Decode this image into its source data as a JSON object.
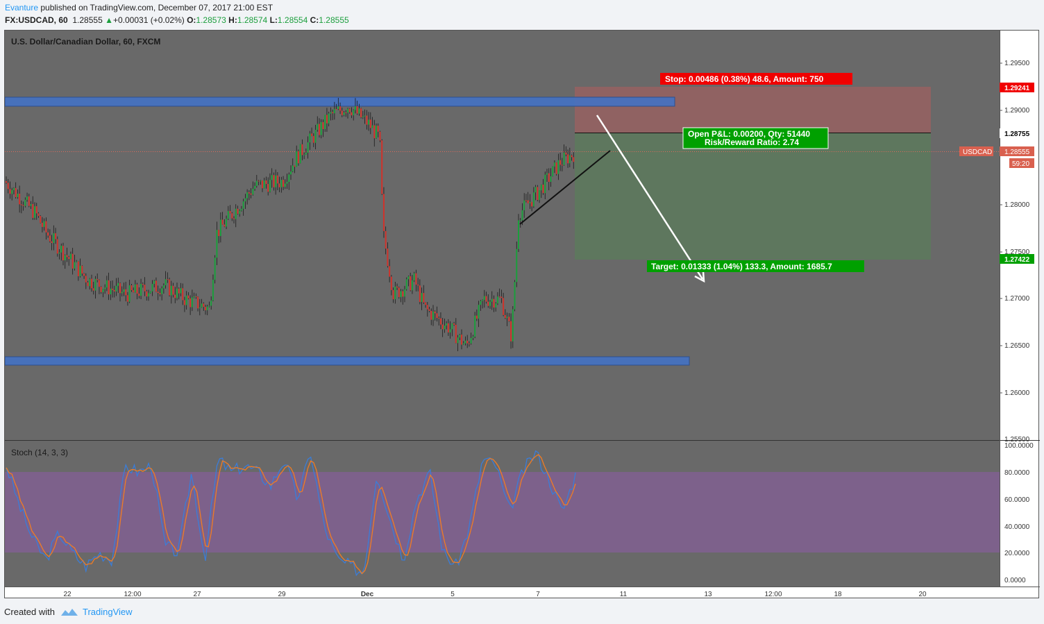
{
  "header": {
    "author": "Evanture",
    "published": " published on TradingView.com, December 07, 2017 21:00 EST",
    "symbol_line": "FX:USDCAD, 60",
    "last": "1.28555",
    "change": "+0.00031 (+0.02%)",
    "o_label": "O:",
    "o": "1.28573",
    "h_label": "H:",
    "h": "1.28574",
    "l_label": "L:",
    "l": "1.28554",
    "c_label": "C:",
    "c": "1.28555"
  },
  "chart": {
    "title": "U.S. Dollar/Canadian Dollar, 60, FXCM",
    "price_ticks": [
      "1.29500",
      "1.29000",
      "1.28500",
      "1.28000",
      "1.27500",
      "1.27000",
      "1.26500",
      "1.26000",
      "1.25500"
    ],
    "stoch_label": "Stoch (14, 3, 3)",
    "stoch_ticks": [
      "100.0000",
      "80.0000",
      "60.0000",
      "40.0000",
      "20.0000",
      "0.0000"
    ],
    "time_ticks": [
      "22",
      "12:00",
      "27",
      "29",
      "Dec",
      "5",
      "7",
      "11",
      "13",
      "12:00",
      "18",
      "20"
    ],
    "stop_label": "Stop: 0.00486 (0.38%) 48.6, Amount: 750",
    "stop_price": "1.29241",
    "entry_price": "1.28755",
    "pnl_line1": "Open P&L: 0.00200, Qty: 51440",
    "pnl_line2": "Risk/Reward Ratio: 2.74",
    "target_label": "Target: 0.01333 (1.04%) 133.3, Amount: 1685.7",
    "target_price": "1.27422",
    "symbol_tag": "USDCAD",
    "current_price": "1.28555",
    "countdown": "59:20",
    "colors": {
      "up": "#1b9e3c",
      "down": "#d0332b",
      "zone": "#4472c4",
      "stop": "#f00000",
      "target": "#00a000",
      "stoch_k": "#3b7dd8",
      "stoch_d": "#f07c24"
    }
  },
  "chart_data": {
    "type": "candlestick",
    "title": "U.S. Dollar/Canadian Dollar, 60, FXCM",
    "symbol": "USDCAD",
    "timeframe": "60",
    "ylim": [
      1.255,
      1.298
    ],
    "close_path": [
      [
        "Nov 21",
        1.2825
      ],
      [
        "Nov 22",
        1.279
      ],
      [
        "Nov 22",
        1.277
      ],
      [
        "Nov 22 12:00",
        1.272
      ],
      [
        "Nov 23",
        1.2705
      ],
      [
        "Nov 24",
        1.2715
      ],
      [
        "Nov 24",
        1.27
      ],
      [
        "Nov 27",
        1.269
      ],
      [
        "Nov 27",
        1.277
      ],
      [
        "Nov 28",
        1.282
      ],
      [
        "Nov 28",
        1.2825
      ],
      [
        "Nov 29",
        1.285
      ],
      [
        "Nov 30",
        1.2895
      ],
      [
        "Nov 30",
        1.2905
      ],
      [
        "Nov 30",
        1.2885
      ],
      [
        "Dec 1",
        1.287
      ],
      [
        "Dec 1",
        1.277
      ],
      [
        "Dec 1",
        1.2705
      ],
      [
        "Dec 4",
        1.272
      ],
      [
        "Dec 4",
        1.269
      ],
      [
        "Dec 4",
        1.267
      ],
      [
        "Dec 5",
        1.265
      ],
      [
        "Dec 5",
        1.27
      ],
      [
        "Dec 6",
        1.27
      ],
      [
        "Dec 6",
        1.266
      ],
      [
        "Dec 6",
        1.279
      ],
      [
        "Dec 7",
        1.2815
      ],
      [
        "Dec 7",
        1.2845
      ],
      [
        "Dec 7",
        1.28555
      ]
    ],
    "horizontal_zones": [
      {
        "name": "resistance",
        "from": 1.2905,
        "to": 1.2915
      },
      {
        "name": "support",
        "from": 1.263,
        "to": 1.2638
      }
    ],
    "position": {
      "entry": 1.28755,
      "stop": 1.29241,
      "target": 1.27422,
      "qty": 51440,
      "risk_reward": 2.74
    },
    "stochastic": {
      "params": [
        14,
        3,
        3
      ],
      "ylim": [
        0,
        100
      ],
      "bands": [
        20,
        80
      ],
      "k_path": [
        85,
        55,
        30,
        15,
        35,
        20,
        10,
        20,
        15,
        85,
        80,
        85,
        25,
        20,
        80,
        15,
        90,
        80,
        85,
        80,
        70,
        90,
        60,
        95,
        40,
        15,
        10,
        5,
        80,
        45,
        15,
        60,
        80,
        20,
        10,
        40,
        90,
        85,
        50,
        80,
        95,
        75,
        50,
        78
      ]
    }
  }
}
